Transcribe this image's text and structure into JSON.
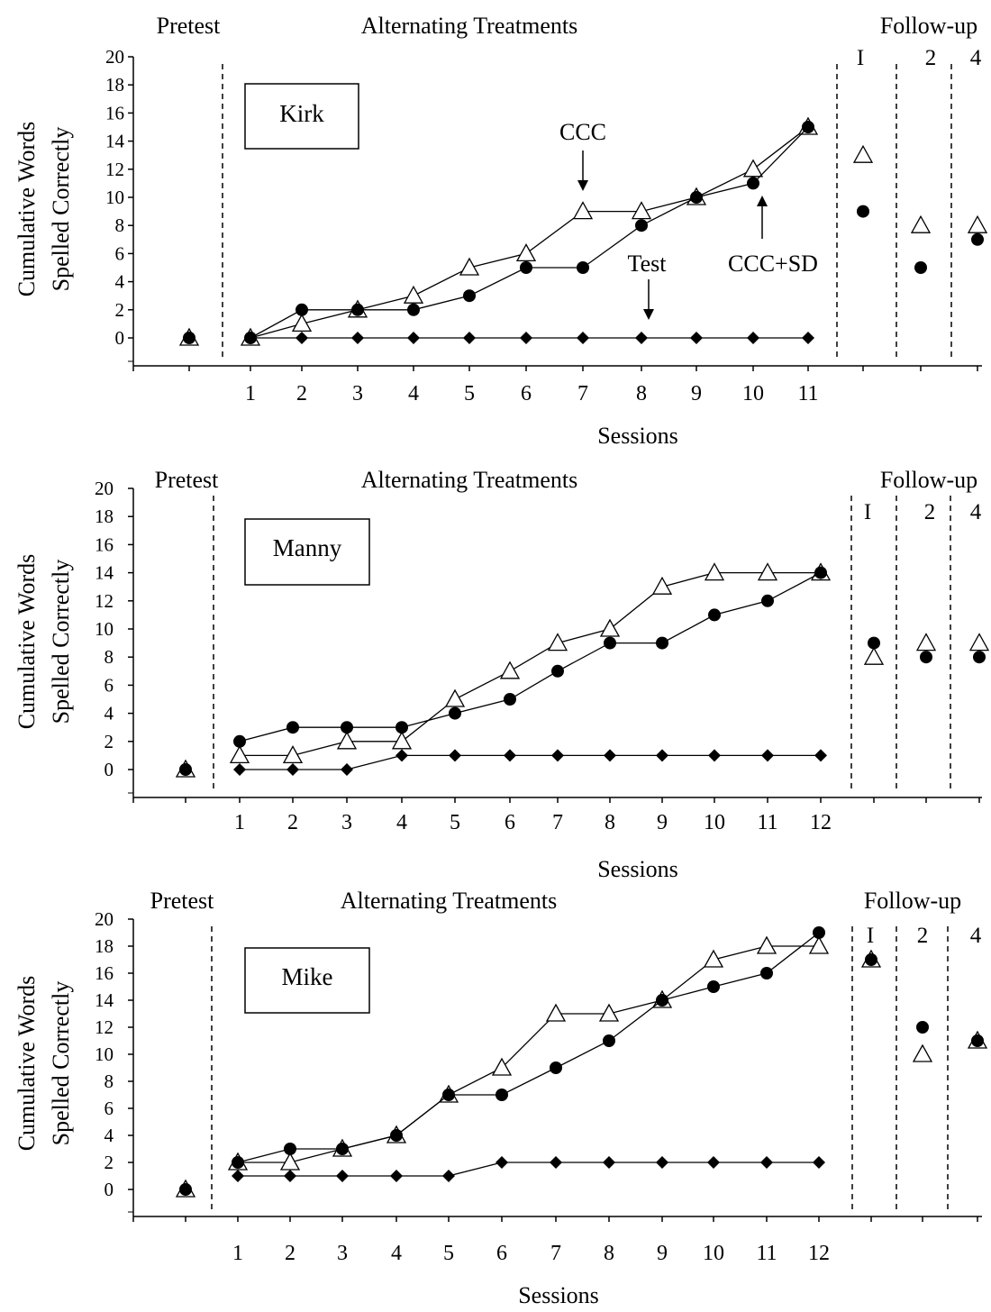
{
  "chart_data": [
    {
      "type": "line",
      "participant": "Kirk",
      "phases": {
        "pretest": "Pretest",
        "treatment": "Alternating Treatments",
        "followup": "Follow-up"
      },
      "followup_labels": [
        "I",
        "2",
        "4"
      ],
      "ylabel": [
        "Cumulative Words",
        "Spelled Correctly"
      ],
      "xlabel": "Sessions",
      "ylim": [
        -2,
        20
      ],
      "yticks": [
        0,
        2,
        4,
        6,
        8,
        10,
        12,
        14,
        16,
        18,
        20
      ],
      "x": [
        1,
        2,
        3,
        4,
        5,
        6,
        7,
        8,
        9,
        10,
        11
      ],
      "annotations": [
        "CCC",
        "Test",
        "CCC+SD"
      ],
      "series": [
        {
          "marker": "triangle",
          "pretest": 0,
          "values": [
            0,
            1,
            2,
            3,
            5,
            6,
            9,
            9,
            10,
            12,
            15
          ],
          "followup": [
            13,
            8,
            8
          ]
        },
        {
          "marker": "circle",
          "pretest": 0,
          "values": [
            0,
            2,
            2,
            2,
            3,
            5,
            5,
            8,
            10,
            11,
            15
          ],
          "followup": [
            9,
            5,
            7
          ]
        },
        {
          "marker": "diamond",
          "values": [
            0,
            0,
            0,
            0,
            0,
            0,
            0,
            0,
            0,
            0,
            0
          ]
        }
      ]
    },
    {
      "type": "line",
      "participant": "Manny",
      "phases": {
        "pretest": "Pretest",
        "treatment": "Alternating Treatments",
        "followup": "Follow-up"
      },
      "followup_labels": [
        "I",
        "2",
        "4"
      ],
      "ylabel": [
        "Cumulative Words",
        "Spelled Correctly"
      ],
      "xlabel": "Sessions",
      "ylim": [
        -2,
        20
      ],
      "yticks": [
        0,
        2,
        4,
        6,
        8,
        10,
        12,
        14,
        16,
        18,
        20
      ],
      "x": [
        1,
        2,
        3,
        4,
        5,
        6,
        7,
        8,
        9,
        10,
        11,
        12
      ],
      "series": [
        {
          "marker": "triangle",
          "pretest": 0,
          "values": [
            1,
            1,
            2,
            2,
            5,
            7,
            9,
            10,
            13,
            14,
            14,
            14
          ],
          "followup": [
            8,
            9,
            9
          ]
        },
        {
          "marker": "circle",
          "pretest": 0,
          "values": [
            2,
            3,
            3,
            3,
            4,
            5,
            7,
            9,
            9,
            11,
            12,
            14
          ],
          "followup": [
            9,
            8,
            8
          ]
        },
        {
          "marker": "diamond",
          "values": [
            0,
            0,
            0,
            1,
            1,
            1,
            1,
            1,
            1,
            1,
            1,
            1
          ]
        }
      ]
    },
    {
      "type": "line",
      "participant": "Mike",
      "phases": {
        "pretest": "Pretest",
        "treatment": "Alternating Treatments",
        "followup": "Follow-up"
      },
      "followup_labels": [
        "I",
        "2",
        "4"
      ],
      "ylabel": [
        "Cumulative Words",
        "Spelled Correctly"
      ],
      "xlabel": "Sessions",
      "ylim": [
        -2,
        20
      ],
      "yticks": [
        0,
        2,
        4,
        6,
        8,
        10,
        12,
        14,
        16,
        18,
        20
      ],
      "x": [
        1,
        2,
        3,
        4,
        5,
        6,
        7,
        8,
        9,
        10,
        11,
        12
      ],
      "series": [
        {
          "marker": "triangle",
          "pretest": 0,
          "values": [
            2,
            2,
            3,
            4,
            7,
            9,
            13,
            13,
            14,
            17,
            18,
            18
          ],
          "followup": [
            17,
            10,
            11
          ]
        },
        {
          "marker": "circle",
          "pretest": 0,
          "values": [
            2,
            3,
            3,
            4,
            7,
            7,
            9,
            11,
            14,
            15,
            16,
            19
          ],
          "followup": [
            17,
            12,
            11
          ]
        },
        {
          "marker": "diamond",
          "values": [
            1,
            1,
            1,
            1,
            1,
            2,
            2,
            2,
            2,
            2,
            2,
            2
          ]
        }
      ]
    }
  ]
}
